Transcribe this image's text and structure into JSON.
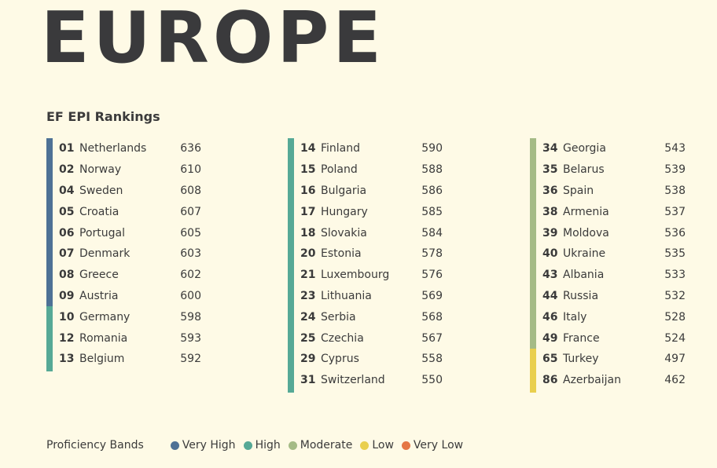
{
  "page": {
    "title": "EUROPE",
    "subtitle": "EF EPI Rankings"
  },
  "colors": {
    "very_high": "#4e7195",
    "high": "#56a996",
    "moderate": "#a5bb86",
    "low": "#e9cf4e",
    "very_low": "#e57644"
  },
  "columns": [
    {
      "rows": [
        {
          "rank": "01",
          "country": "Netherlands",
          "score": "636",
          "band": "very_high"
        },
        {
          "rank": "02",
          "country": "Norway",
          "score": "610",
          "band": "very_high"
        },
        {
          "rank": "04",
          "country": "Sweden",
          "score": "608",
          "band": "very_high"
        },
        {
          "rank": "05",
          "country": "Croatia",
          "score": "607",
          "band": "very_high"
        },
        {
          "rank": "06",
          "country": "Portugal",
          "score": "605",
          "band": "very_high"
        },
        {
          "rank": "07",
          "country": "Denmark",
          "score": "603",
          "band": "very_high"
        },
        {
          "rank": "08",
          "country": "Greece",
          "score": "602",
          "band": "very_high"
        },
        {
          "rank": "09",
          "country": "Austria",
          "score": "600",
          "band": "very_high"
        },
        {
          "rank": "10",
          "country": "Germany",
          "score": "598",
          "band": "high"
        },
        {
          "rank": "12",
          "country": "Romania",
          "score": "593",
          "band": "high"
        },
        {
          "rank": "13",
          "country": "Belgium",
          "score": "592",
          "band": "high"
        }
      ]
    },
    {
      "rows": [
        {
          "rank": "14",
          "country": "Finland",
          "score": "590",
          "band": "high"
        },
        {
          "rank": "15",
          "country": "Poland",
          "score": "588",
          "band": "high"
        },
        {
          "rank": "16",
          "country": "Bulgaria",
          "score": "586",
          "band": "high"
        },
        {
          "rank": "17",
          "country": "Hungary",
          "score": "585",
          "band": "high"
        },
        {
          "rank": "18",
          "country": "Slovakia",
          "score": "584",
          "band": "high"
        },
        {
          "rank": "20",
          "country": "Estonia",
          "score": "578",
          "band": "high"
        },
        {
          "rank": "21",
          "country": "Luxembourg",
          "score": "576",
          "band": "high"
        },
        {
          "rank": "23",
          "country": "Lithuania",
          "score": "569",
          "band": "high"
        },
        {
          "rank": "24",
          "country": "Serbia",
          "score": "568",
          "band": "high"
        },
        {
          "rank": "25",
          "country": "Czechia",
          "score": "567",
          "band": "high"
        },
        {
          "rank": "29",
          "country": "Cyprus",
          "score": "558",
          "band": "high"
        },
        {
          "rank": "31",
          "country": "Switzerland",
          "score": "550",
          "band": "high"
        }
      ]
    },
    {
      "rows": [
        {
          "rank": "34",
          "country": "Georgia",
          "score": "543",
          "band": "moderate"
        },
        {
          "rank": "35",
          "country": "Belarus",
          "score": "539",
          "band": "moderate"
        },
        {
          "rank": "36",
          "country": "Spain",
          "score": "538",
          "band": "moderate"
        },
        {
          "rank": "38",
          "country": "Armenia",
          "score": "537",
          "band": "moderate"
        },
        {
          "rank": "39",
          "country": "Moldova",
          "score": "536",
          "band": "moderate"
        },
        {
          "rank": "40",
          "country": "Ukraine",
          "score": "535",
          "band": "moderate"
        },
        {
          "rank": "43",
          "country": "Albania",
          "score": "533",
          "band": "moderate"
        },
        {
          "rank": "44",
          "country": "Russia",
          "score": "532",
          "band": "moderate"
        },
        {
          "rank": "46",
          "country": "Italy",
          "score": "528",
          "band": "moderate"
        },
        {
          "rank": "49",
          "country": "France",
          "score": "524",
          "band": "moderate"
        },
        {
          "rank": "65",
          "country": "Turkey",
          "score": "497",
          "band": "low"
        },
        {
          "rank": "86",
          "country": "Azerbaijan",
          "score": "462",
          "band": "low"
        }
      ]
    }
  ],
  "legend": {
    "title": "Proficiency Bands",
    "items": [
      {
        "label": "Very High",
        "band": "very_high"
      },
      {
        "label": "High",
        "band": "high"
      },
      {
        "label": "Moderate",
        "band": "moderate"
      },
      {
        "label": "Low",
        "band": "low"
      },
      {
        "label": "Very Low",
        "band": "very_low"
      }
    ]
  }
}
